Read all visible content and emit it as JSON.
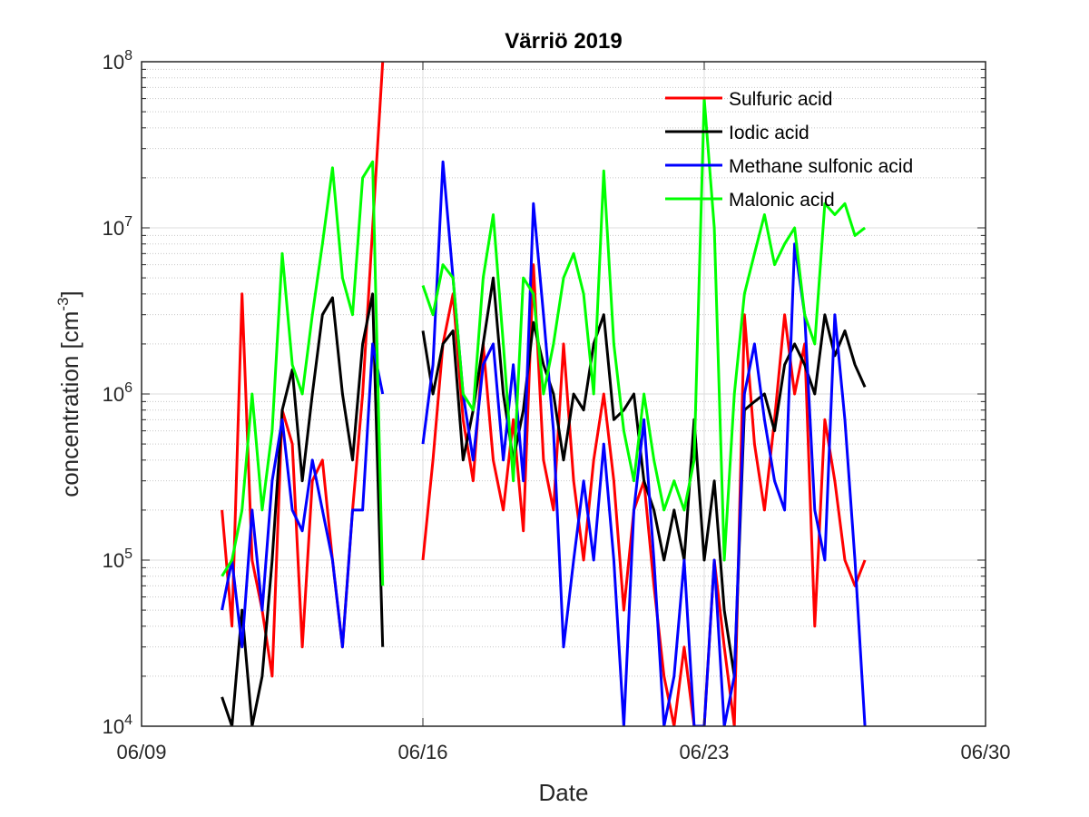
{
  "chart_data": {
    "type": "line",
    "title": "Värriö 2019",
    "xlabel": "Date",
    "ylabel": "concentration [cm",
    "ylabel_sup": "-3",
    "ylabel_end": "]",
    "y_scale": "log",
    "ylim": [
      10000,
      100000000
    ],
    "xlim": [
      "2019-06-09",
      "2019-06-30"
    ],
    "x_ticks": [
      "2019-06-09",
      "2019-06-16",
      "2019-06-23",
      "2019-06-30"
    ],
    "x_tick_labels": [
      "06/09",
      "06/16",
      "06/23",
      "06/30"
    ],
    "y_ticks": [
      10000,
      100000,
      1000000,
      10000000,
      100000000
    ],
    "y_tick_bases": [
      "10",
      "10",
      "10",
      "10",
      "10"
    ],
    "y_tick_exps": [
      "4",
      "5",
      "6",
      "7",
      "8"
    ],
    "grid": "major and minor",
    "legend_position": "top-right",
    "series": [
      {
        "name": "Sulfuric acid",
        "color": "#ff0000",
        "x": [
          "2019-06-11 00:00",
          "2019-06-11 06:00",
          "2019-06-11 12:00",
          "2019-06-11 18:00",
          "2019-06-12 00:00",
          "2019-06-12 06:00",
          "2019-06-12 12:00",
          "2019-06-12 18:00",
          "2019-06-13 00:00",
          "2019-06-13 06:00",
          "2019-06-13 12:00",
          "2019-06-13 18:00",
          "2019-06-14 00:00",
          "2019-06-14 06:00",
          "2019-06-14 12:00",
          "2019-06-14 18:00",
          "2019-06-15 00:00",
          null,
          "2019-06-16 00:00",
          "2019-06-16 06:00",
          "2019-06-16 12:00",
          "2019-06-16 18:00",
          "2019-06-17 00:00",
          "2019-06-17 06:00",
          "2019-06-17 12:00",
          "2019-06-17 18:00",
          "2019-06-18 00:00",
          "2019-06-18 06:00",
          "2019-06-18 12:00",
          "2019-06-18 18:00",
          "2019-06-19 00:00",
          "2019-06-19 06:00",
          "2019-06-19 12:00",
          "2019-06-19 18:00",
          "2019-06-20 00:00",
          "2019-06-20 06:00",
          "2019-06-20 12:00",
          "2019-06-20 18:00",
          "2019-06-21 00:00",
          "2019-06-21 06:00",
          "2019-06-21 12:00",
          "2019-06-21 18:00",
          "2019-06-22 00:00",
          "2019-06-22 06:00",
          "2019-06-22 12:00",
          "2019-06-22 18:00",
          "2019-06-23 00:00",
          "2019-06-23 06:00",
          "2019-06-23 12:00",
          "2019-06-23 18:00",
          "2019-06-24 00:00",
          "2019-06-24 06:00",
          "2019-06-24 12:00",
          "2019-06-24 18:00",
          "2019-06-25 00:00",
          "2019-06-25 06:00",
          "2019-06-25 12:00",
          "2019-06-25 18:00",
          "2019-06-26 00:00",
          "2019-06-26 06:00",
          "2019-06-26 12:00",
          "2019-06-26 18:00",
          "2019-06-27 00:00"
        ],
        "values": [
          200000,
          40000,
          4000000,
          100000,
          50000,
          20000,
          800000,
          500000,
          30000,
          300000,
          400000,
          100000,
          30000,
          200000,
          1000000,
          10000000,
          100000000,
          null,
          100000,
          400000,
          2000000,
          4000000,
          700000,
          300000,
          2000000,
          400000,
          200000,
          700000,
          150000,
          6000000,
          400000,
          200000,
          2000000,
          300000,
          100000,
          400000,
          1000000,
          300000,
          50000,
          200000,
          300000,
          70000,
          20000,
          10000,
          30000,
          10000,
          10000,
          100000,
          30000,
          10000,
          3000000,
          500000,
          200000,
          700000,
          3000000,
          1000000,
          2000000,
          40000,
          700000,
          300000,
          100000,
          70000,
          100000
        ]
      },
      {
        "name": "Iodic acid",
        "color": "#000000",
        "x": [
          "2019-06-11 00:00",
          "2019-06-11 06:00",
          "2019-06-11 12:00",
          "2019-06-11 18:00",
          "2019-06-12 00:00",
          "2019-06-12 06:00",
          "2019-06-12 12:00",
          "2019-06-12 18:00",
          "2019-06-13 00:00",
          "2019-06-13 06:00",
          "2019-06-13 12:00",
          "2019-06-13 18:00",
          "2019-06-14 00:00",
          "2019-06-14 06:00",
          "2019-06-14 12:00",
          "2019-06-14 18:00",
          "2019-06-15 00:00",
          null,
          "2019-06-16 00:00",
          "2019-06-16 06:00",
          "2019-06-16 12:00",
          "2019-06-16 18:00",
          "2019-06-17 00:00",
          "2019-06-17 06:00",
          "2019-06-17 12:00",
          "2019-06-17 18:00",
          "2019-06-18 00:00",
          "2019-06-18 06:00",
          "2019-06-18 12:00",
          "2019-06-18 18:00",
          "2019-06-19 00:00",
          "2019-06-19 06:00",
          "2019-06-19 12:00",
          "2019-06-19 18:00",
          "2019-06-20 00:00",
          "2019-06-20 06:00",
          "2019-06-20 12:00",
          "2019-06-20 18:00",
          "2019-06-21 00:00",
          "2019-06-21 06:00",
          "2019-06-21 12:00",
          "2019-06-21 18:00",
          "2019-06-22 00:00",
          "2019-06-22 06:00",
          "2019-06-22 12:00",
          "2019-06-22 18:00",
          "2019-06-23 00:00",
          "2019-06-23 06:00",
          "2019-06-23 12:00",
          "2019-06-23 18:00",
          "2019-06-24 00:00",
          "2019-06-24 06:00",
          "2019-06-24 12:00",
          "2019-06-24 18:00",
          "2019-06-25 00:00",
          "2019-06-25 06:00",
          "2019-06-25 12:00",
          "2019-06-25 18:00",
          "2019-06-26 00:00",
          "2019-06-26 06:00",
          "2019-06-26 12:00",
          "2019-06-26 18:00",
          "2019-06-27 00:00"
        ],
        "values": [
          15000,
          10000,
          50000,
          10000,
          20000,
          100000,
          800000,
          1400000,
          300000,
          1000000,
          3000000,
          3800000,
          1000000,
          400000,
          2000000,
          4000000,
          30000,
          null,
          2400000,
          1000000,
          2000000,
          2400000,
          400000,
          800000,
          2000000,
          5000000,
          1000000,
          400000,
          800000,
          2700000,
          1500000,
          1000000,
          400000,
          1000000,
          800000,
          2000000,
          3000000,
          700000,
          800000,
          1000000,
          300000,
          200000,
          100000,
          200000,
          100000,
          700000,
          100000,
          300000,
          50000,
          20000,
          800000,
          900000,
          1000000,
          600000,
          1500000,
          2000000,
          1500000,
          1000000,
          3000000,
          1700000,
          2400000,
          1500000,
          1100000
        ]
      },
      {
        "name": "Methane sulfonic acid",
        "color": "#0000ff",
        "x": [
          "2019-06-11 00:00",
          "2019-06-11 06:00",
          "2019-06-11 12:00",
          "2019-06-11 18:00",
          "2019-06-12 00:00",
          "2019-06-12 06:00",
          "2019-06-12 12:00",
          "2019-06-12 18:00",
          "2019-06-13 00:00",
          "2019-06-13 06:00",
          "2019-06-13 12:00",
          "2019-06-13 18:00",
          "2019-06-14 00:00",
          "2019-06-14 06:00",
          "2019-06-14 12:00",
          "2019-06-14 18:00",
          "2019-06-15 00:00",
          null,
          "2019-06-16 00:00",
          "2019-06-16 06:00",
          "2019-06-16 12:00",
          "2019-06-16 18:00",
          "2019-06-17 00:00",
          "2019-06-17 06:00",
          "2019-06-17 12:00",
          "2019-06-17 18:00",
          "2019-06-18 00:00",
          "2019-06-18 06:00",
          "2019-06-18 12:00",
          "2019-06-18 18:00",
          "2019-06-19 00:00",
          "2019-06-19 06:00",
          "2019-06-19 12:00",
          "2019-06-19 18:00",
          "2019-06-20 00:00",
          "2019-06-20 06:00",
          "2019-06-20 12:00",
          "2019-06-20 18:00",
          "2019-06-21 00:00",
          "2019-06-21 06:00",
          "2019-06-21 12:00",
          "2019-06-21 18:00",
          "2019-06-22 00:00",
          "2019-06-22 06:00",
          "2019-06-22 12:00",
          "2019-06-22 18:00",
          "2019-06-23 00:00",
          "2019-06-23 06:00",
          "2019-06-23 12:00",
          "2019-06-23 18:00",
          "2019-06-24 00:00",
          "2019-06-24 06:00",
          "2019-06-24 12:00",
          "2019-06-24 18:00",
          "2019-06-25 00:00",
          "2019-06-25 06:00",
          "2019-06-25 12:00",
          "2019-06-25 18:00",
          "2019-06-26 00:00",
          "2019-06-26 06:00",
          "2019-06-26 12:00",
          "2019-06-26 18:00",
          "2019-06-27 00:00"
        ],
        "values": [
          50000,
          100000,
          30000,
          200000,
          50000,
          300000,
          700000,
          200000,
          150000,
          400000,
          200000,
          100000,
          30000,
          200000,
          200000,
          2000000,
          1000000,
          null,
          500000,
          1500000,
          25000000,
          5000000,
          1000000,
          400000,
          1500000,
          2000000,
          400000,
          1500000,
          300000,
          14000000,
          3000000,
          600000,
          30000,
          100000,
          300000,
          100000,
          500000,
          100000,
          10000,
          200000,
          700000,
          100000,
          10000,
          20000,
          100000,
          10000,
          10000,
          100000,
          10000,
          20000,
          1000000,
          2000000,
          700000,
          300000,
          200000,
          8000000,
          3000000,
          200000,
          100000,
          3000000,
          700000,
          100000,
          10000
        ]
      },
      {
        "name": "Malonic acid",
        "color": "#00ff00",
        "x": [
          "2019-06-11 00:00",
          "2019-06-11 06:00",
          "2019-06-11 12:00",
          "2019-06-11 18:00",
          "2019-06-12 00:00",
          "2019-06-12 06:00",
          "2019-06-12 12:00",
          "2019-06-12 18:00",
          "2019-06-13 00:00",
          "2019-06-13 06:00",
          "2019-06-13 12:00",
          "2019-06-13 18:00",
          "2019-06-14 00:00",
          "2019-06-14 06:00",
          "2019-06-14 12:00",
          "2019-06-14 18:00",
          "2019-06-15 00:00",
          null,
          "2019-06-16 00:00",
          "2019-06-16 06:00",
          "2019-06-16 12:00",
          "2019-06-16 18:00",
          "2019-06-17 00:00",
          "2019-06-17 06:00",
          "2019-06-17 12:00",
          "2019-06-17 18:00",
          "2019-06-18 00:00",
          "2019-06-18 06:00",
          "2019-06-18 12:00",
          "2019-06-18 18:00",
          "2019-06-19 00:00",
          "2019-06-19 06:00",
          "2019-06-19 12:00",
          "2019-06-19 18:00",
          "2019-06-20 00:00",
          "2019-06-20 06:00",
          "2019-06-20 12:00",
          "2019-06-20 18:00",
          "2019-06-21 00:00",
          "2019-06-21 06:00",
          "2019-06-21 12:00",
          "2019-06-21 18:00",
          "2019-06-22 00:00",
          "2019-06-22 06:00",
          "2019-06-22 12:00",
          "2019-06-22 18:00",
          "2019-06-23 00:00",
          "2019-06-23 06:00",
          "2019-06-23 12:00",
          "2019-06-23 18:00",
          "2019-06-24 00:00",
          "2019-06-24 06:00",
          "2019-06-24 12:00",
          "2019-06-24 18:00",
          "2019-06-25 00:00",
          "2019-06-25 06:00",
          "2019-06-25 12:00",
          "2019-06-25 18:00",
          "2019-06-26 00:00",
          "2019-06-26 06:00",
          "2019-06-26 12:00",
          "2019-06-26 18:00",
          "2019-06-27 00:00"
        ],
        "values": [
          80000,
          100000,
          200000,
          1000000,
          200000,
          600000,
          7000000,
          1500000,
          1000000,
          3000000,
          8000000,
          23000000,
          5000000,
          3000000,
          20000000,
          25000000,
          70000,
          null,
          4500000,
          3000000,
          6000000,
          5000000,
          1000000,
          800000,
          5000000,
          12000000,
          2000000,
          300000,
          5000000,
          4000000,
          1000000,
          2000000,
          5000000,
          7000000,
          4000000,
          1000000,
          22000000,
          2000000,
          600000,
          300000,
          1000000,
          400000,
          200000,
          300000,
          200000,
          400000,
          60000000,
          10000000,
          100000,
          1000000,
          4000000,
          7000000,
          12000000,
          6000000,
          8000000,
          10000000,
          3000000,
          2000000,
          14000000,
          12000000,
          14000000,
          9000000,
          10000000
        ]
      }
    ]
  }
}
